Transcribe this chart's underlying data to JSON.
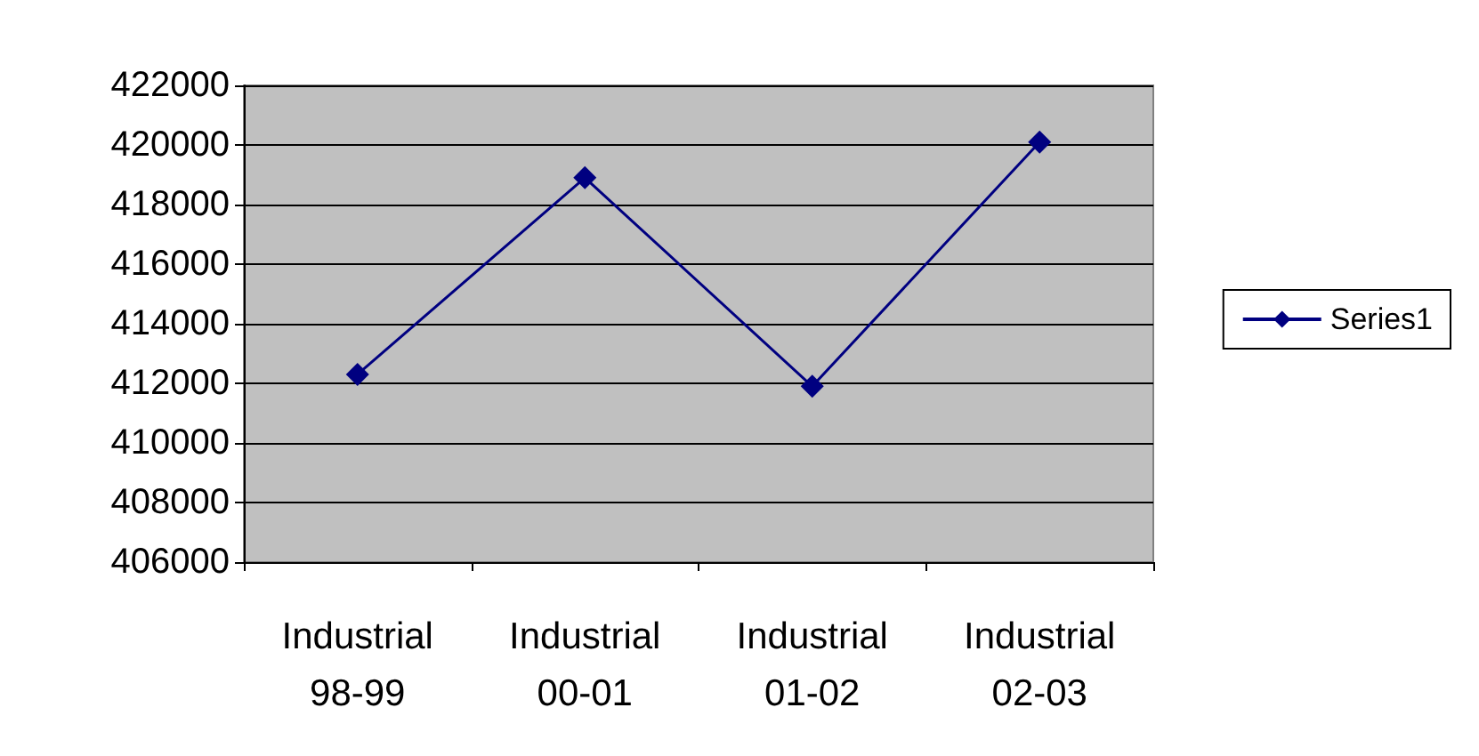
{
  "chart_data": {
    "type": "line",
    "categories": [
      "Industrial 98-99",
      "Industrial 00-01",
      "Industrial 01-02",
      "Industrial 02-03"
    ],
    "series": [
      {
        "name": "Series1",
        "color": "#000080",
        "values": [
          412300,
          418900,
          411900,
          420100
        ]
      }
    ],
    "ylim": [
      406000,
      422000
    ],
    "yticks": [
      406000,
      408000,
      410000,
      412000,
      414000,
      416000,
      418000,
      420000,
      422000
    ],
    "grid": "y",
    "legend": "right",
    "marker": "diamond",
    "line_style": "solid"
  }
}
